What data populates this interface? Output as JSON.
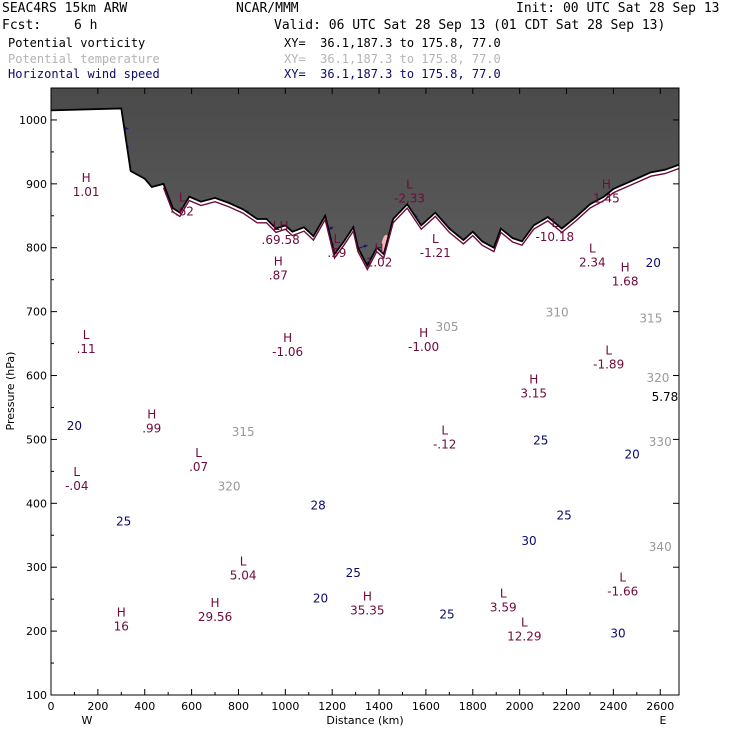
{
  "header": {
    "model": "SEAC4RS 15km ARW",
    "org": "NCAR/MMM",
    "init": "Init: 00 UTC Sat 28 Sep 13",
    "fcst_label": "Fcst:",
    "fcst_value": "6 h",
    "valid": "Valid: 06 UTC Sat 28 Sep 13 (01 CDT Sat 28 Sep 13)"
  },
  "fields": [
    {
      "name": "Potential vorticity",
      "xy": "XY=  36.1,187.3 to 175.8, 77.0",
      "color": "#000000"
    },
    {
      "name": "Potential temperature",
      "xy": "XY=  36.1,187.3 to 175.8, 77.0",
      "color": "#b4b4b4"
    },
    {
      "name": "Horizontal wind speed",
      "xy": "XY=  36.1,187.3 to 175.8, 77.0",
      "color": "#0a0a6e"
    }
  ],
  "chart_data": {
    "type": "cross-section",
    "ylabel": "Pressure (hPa)",
    "xlabel": "Distance (km)",
    "xlim": [
      0,
      2680
    ],
    "ylim": [
      1050,
      100
    ],
    "x_ticks": [
      0,
      200,
      400,
      600,
      800,
      1000,
      1200,
      1400,
      1600,
      1800,
      2000,
      2200,
      2400,
      2600
    ],
    "y_ticks": [
      100,
      200,
      300,
      400,
      500,
      600,
      700,
      800,
      900,
      1000
    ],
    "x_end_labels": {
      "left": "W",
      "right": "E"
    },
    "terrain_pressure": [
      [
        0,
        1015
      ],
      [
        300,
        1018
      ],
      [
        340,
        920
      ],
      [
        400,
        908
      ],
      [
        430,
        895
      ],
      [
        480,
        900
      ],
      [
        520,
        862
      ],
      [
        550,
        855
      ],
      [
        590,
        880
      ],
      [
        640,
        872
      ],
      [
        700,
        878
      ],
      [
        760,
        870
      ],
      [
        820,
        860
      ],
      [
        880,
        845
      ],
      [
        920,
        845
      ],
      [
        960,
        830
      ],
      [
        1000,
        835
      ],
      [
        1030,
        825
      ],
      [
        1080,
        832
      ],
      [
        1120,
        818
      ],
      [
        1170,
        850
      ],
      [
        1210,
        790
      ],
      [
        1250,
        810
      ],
      [
        1290,
        832
      ],
      [
        1310,
        800
      ],
      [
        1350,
        772
      ],
      [
        1390,
        800
      ],
      [
        1420,
        790
      ],
      [
        1460,
        845
      ],
      [
        1520,
        868
      ],
      [
        1580,
        835
      ],
      [
        1640,
        855
      ],
      [
        1700,
        830
      ],
      [
        1760,
        812
      ],
      [
        1800,
        825
      ],
      [
        1840,
        810
      ],
      [
        1890,
        800
      ],
      [
        1920,
        830
      ],
      [
        1970,
        815
      ],
      [
        2010,
        810
      ],
      [
        2060,
        835
      ],
      [
        2120,
        848
      ],
      [
        2180,
        830
      ],
      [
        2240,
        848
      ],
      [
        2300,
        868
      ],
      [
        2360,
        880
      ],
      [
        2400,
        892
      ],
      [
        2480,
        905
      ],
      [
        2560,
        918
      ],
      [
        2620,
        922
      ],
      [
        2680,
        930
      ]
    ],
    "theta_contours": [
      {
        "label": "305",
        "x": 1690,
        "y": 670
      },
      {
        "label": "310",
        "x": 2160,
        "y": 692
      },
      {
        "label": "315",
        "x": 2560,
        "y": 683
      },
      {
        "label": "315",
        "x": 820,
        "y": 505
      },
      {
        "label": "320",
        "x": 760,
        "y": 420
      },
      {
        "label": "320",
        "x": 2590,
        "y": 590
      },
      {
        "label": "330",
        "x": 2600,
        "y": 490
      },
      {
        "label": "340",
        "x": 2600,
        "y": 325
      }
    ],
    "wind_speed_contours": [
      {
        "label": "20",
        "x": 100,
        "y": 515
      },
      {
        "label": "25",
        "x": 310,
        "y": 365
      },
      {
        "label": "28",
        "x": 1140,
        "y": 390
      },
      {
        "label": "20",
        "x": 1150,
        "y": 245
      },
      {
        "label": "25",
        "x": 1290,
        "y": 285
      },
      {
        "label": "30",
        "x": 2040,
        "y": 335
      },
      {
        "label": "25",
        "x": 2190,
        "y": 375
      },
      {
        "label": "25",
        "x": 2090,
        "y": 492
      },
      {
        "label": "20",
        "x": 2480,
        "y": 470
      },
      {
        "label": "30",
        "x": 2420,
        "y": 190
      },
      {
        "label": "20",
        "x": 2570,
        "y": 770
      },
      {
        "label": "25",
        "x": 1690,
        "y": 220
      }
    ],
    "extrema": [
      {
        "kind": "H",
        "value": "1.01",
        "x": 150,
        "y": 890
      },
      {
        "kind": "L",
        "value": ".11",
        "x": 150,
        "y": 645
      },
      {
        "kind": "H",
        "value": ".99",
        "x": 430,
        "y": 520
      },
      {
        "kind": "L",
        "value": ".07",
        "x": 630,
        "y": 460
      },
      {
        "kind": "L",
        "value": "-.04",
        "x": 110,
        "y": 430
      },
      {
        "kind": "L",
        "value": "-.62",
        "x": 560,
        "y": 860
      },
      {
        "kind": "H",
        "value": "-1.06",
        "x": 1010,
        "y": 640
      },
      {
        "kind": "H",
        "value": ".87",
        "x": 970,
        "y": 760
      },
      {
        "kind": "LH",
        "value": ".69.58",
        "x": 980,
        "y": 815
      },
      {
        "kind": "L",
        "value": ".59",
        "x": 1220,
        "y": 795
      },
      {
        "kind": "H",
        "value": "1.02",
        "x": 1400,
        "y": 780
      },
      {
        "kind": "L",
        "value": "-1.21",
        "x": 1640,
        "y": 795
      },
      {
        "kind": "H",
        "value": "-1.00",
        "x": 1590,
        "y": 648
      },
      {
        "kind": "L",
        "value": "-2.33",
        "x": 1530,
        "y": 880
      },
      {
        "kind": "L",
        "value": "-.12",
        "x": 1680,
        "y": 495
      },
      {
        "kind": "H",
        "value": "3.15",
        "x": 2060,
        "y": 575
      },
      {
        "kind": "L",
        "value": "-1.89",
        "x": 2380,
        "y": 620
      },
      {
        "kind": "H",
        "value": "1.68",
        "x": 2450,
        "y": 750
      },
      {
        "kind": "L",
        "value": "2.34",
        "x": 2310,
        "y": 780
      },
      {
        "kind": "L",
        "value": "-10.18",
        "x": 2150,
        "y": 820
      },
      {
        "kind": "H",
        "value": "1.45",
        "x": 2370,
        "y": 880
      },
      {
        "kind": "L",
        "value": "-1.66",
        "x": 2440,
        "y": 265
      },
      {
        "kind": "H",
        "value": "29.56",
        "x": 700,
        "y": 225
      },
      {
        "kind": "L",
        "value": "5.04",
        "x": 820,
        "y": 290
      },
      {
        "kind": "H",
        "value": "35.35",
        "x": 1350,
        "y": 235
      },
      {
        "kind": "L",
        "value": "3.59",
        "x": 1930,
        "y": 240
      },
      {
        "kind": "L",
        "value": "12.29",
        "x": 2020,
        "y": 195
      },
      {
        "kind": "H",
        "value": "16",
        "x": 300,
        "y": 210
      }
    ],
    "color_scale": {
      "tropopause_pv": "#6e0a3c",
      "negative_pv": "#f5b4b9",
      "wind_contour": "#0a0a6e",
      "wind_vector": "#14148c",
      "theta": "#aaaaaa",
      "stratosphere_shading": "#303030"
    }
  }
}
